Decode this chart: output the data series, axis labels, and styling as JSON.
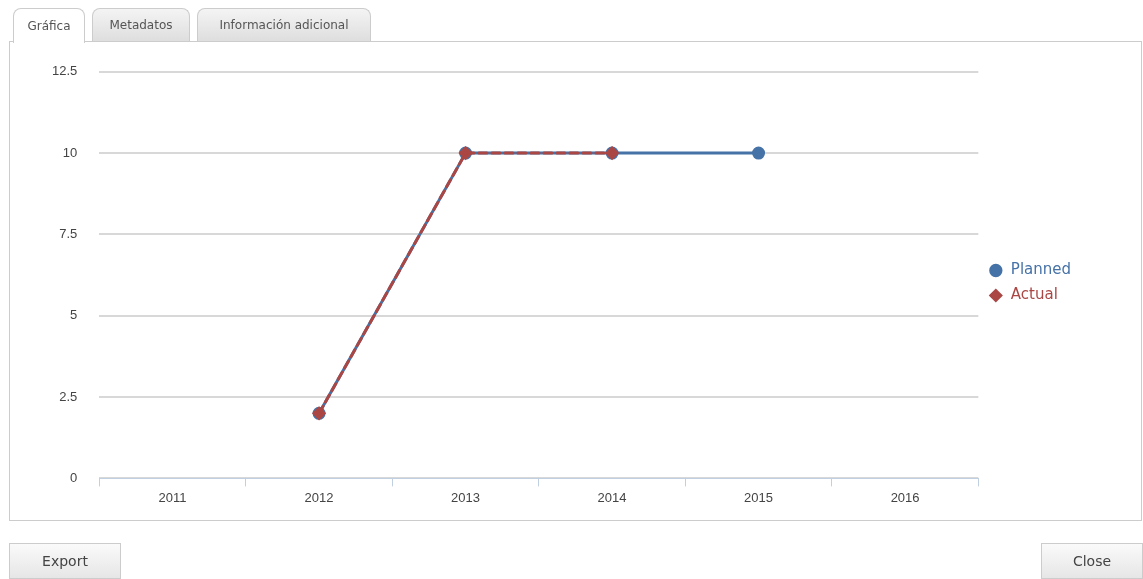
{
  "chart_data": {
    "type": "line",
    "categories": [
      "2011",
      "2012",
      "2013",
      "2014",
      "2015",
      "2016"
    ],
    "series": [
      {
        "name": "Planned",
        "color": "#4572a7",
        "values": [
          null,
          2,
          10,
          10,
          10,
          null
        ],
        "marker": "circle",
        "line_style": "solid"
      },
      {
        "name": "Actual",
        "color": "#aa4643",
        "values": [
          null,
          2,
          10,
          10,
          null,
          null
        ],
        "marker": "diamond",
        "line_style": "dashed"
      }
    ],
    "ylim": [
      0,
      12.5
    ],
    "yticks": [
      0,
      2.5,
      5,
      7.5,
      10,
      12.5
    ],
    "grid": "y",
    "legend": "right",
    "annotations": [
      "Gráfica",
      "Metadatos",
      "Información adicional",
      "Export",
      "Close"
    ]
  }
}
